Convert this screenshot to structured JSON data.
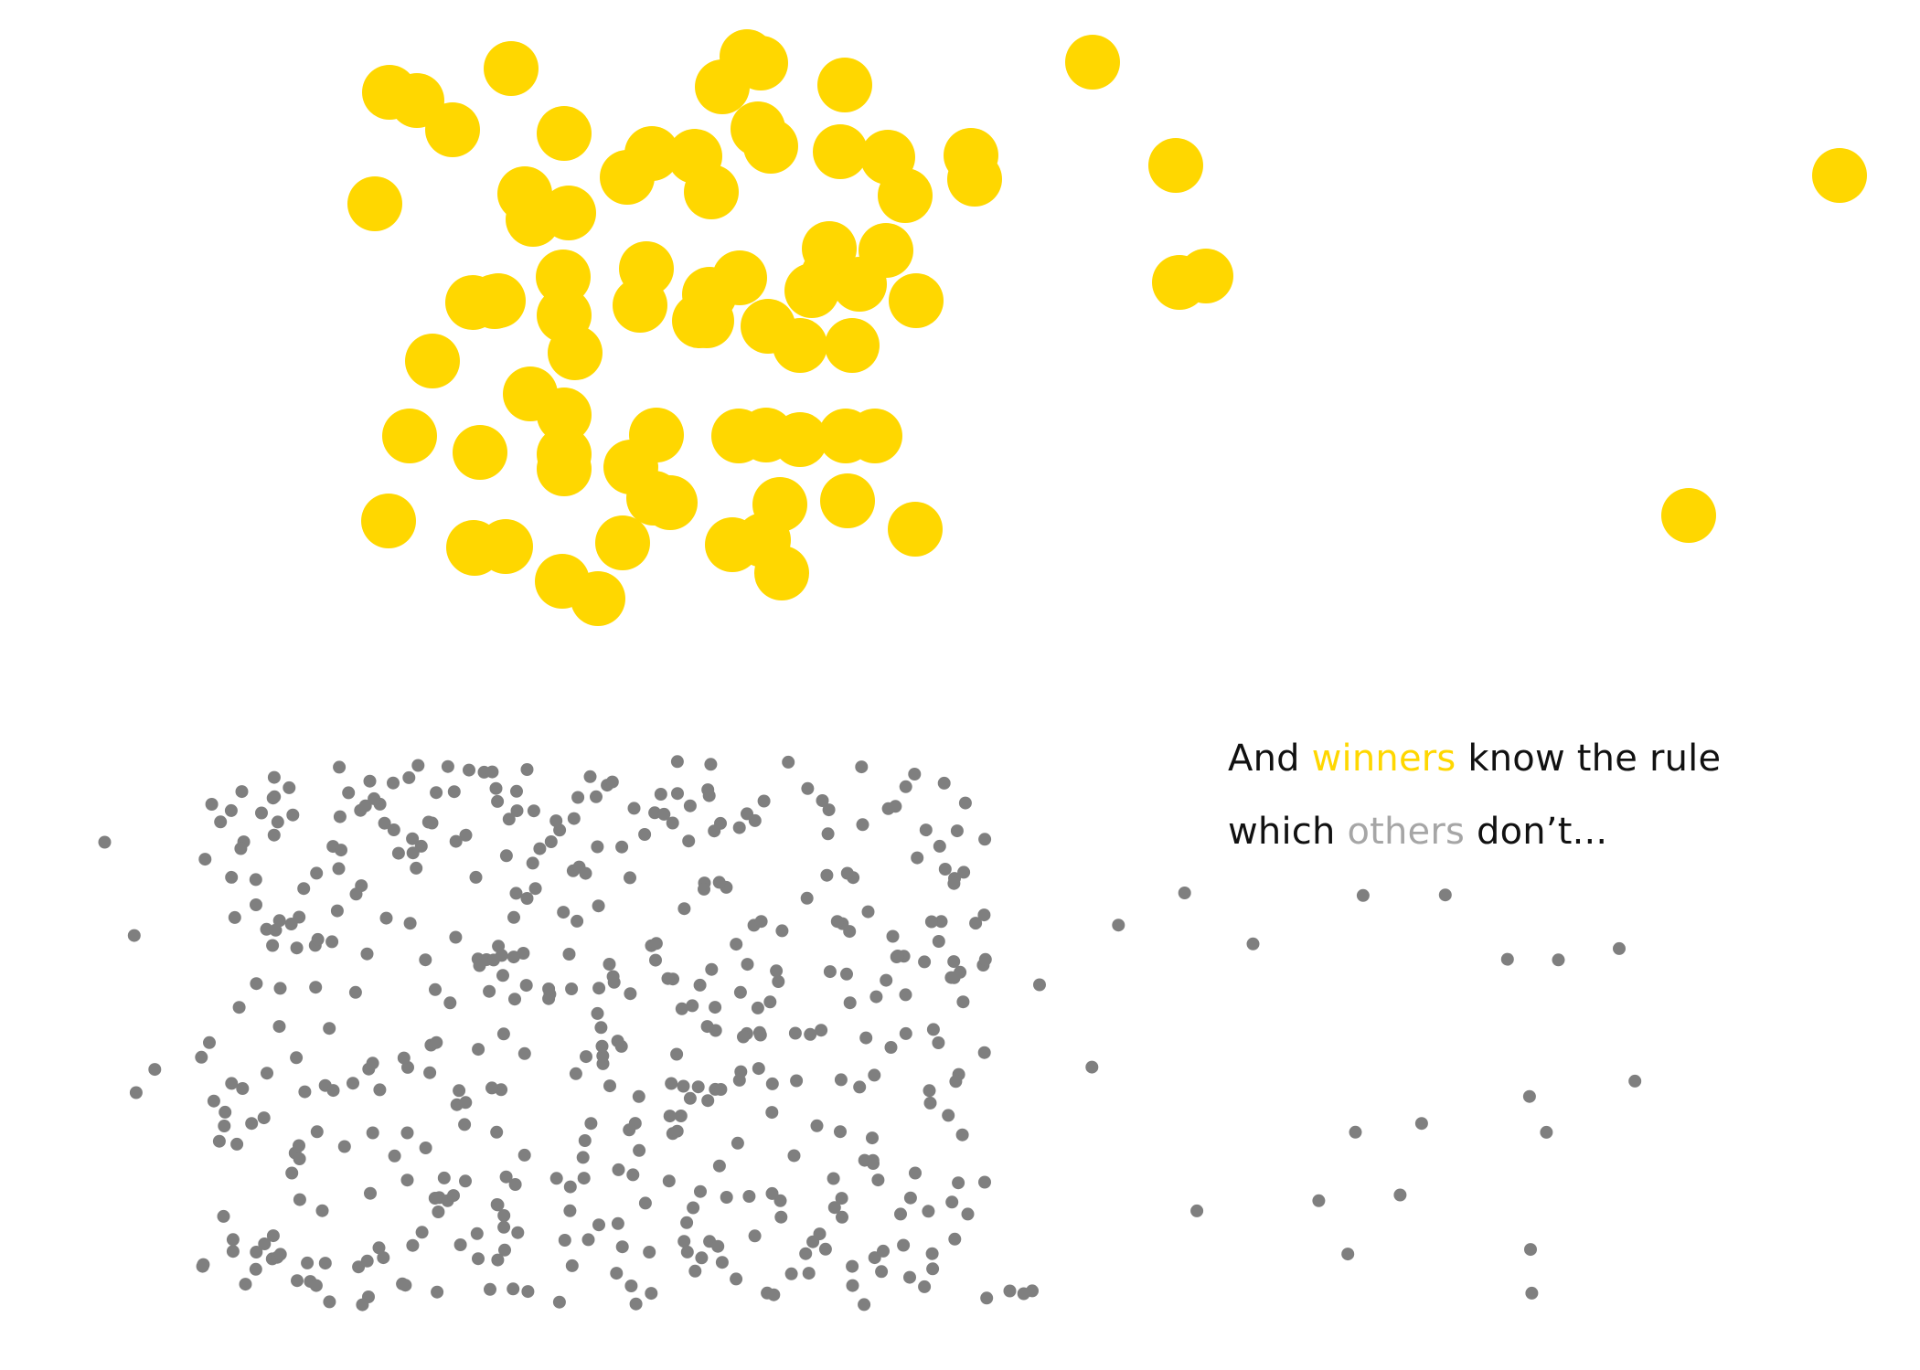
{
  "colors": {
    "background": "#ffffff",
    "winners": "#ffd700",
    "others": "#7f7f7f",
    "others_text": "#a6a6a6",
    "text": "#111111"
  },
  "caption": {
    "line1": {
      "before": "And ",
      "highlight": "winners",
      "after": " know the rule"
    },
    "line2": {
      "before": "which ",
      "highlight": "others",
      "after": " don’t..."
    }
  },
  "winners_count": 80,
  "others_count": 500
}
